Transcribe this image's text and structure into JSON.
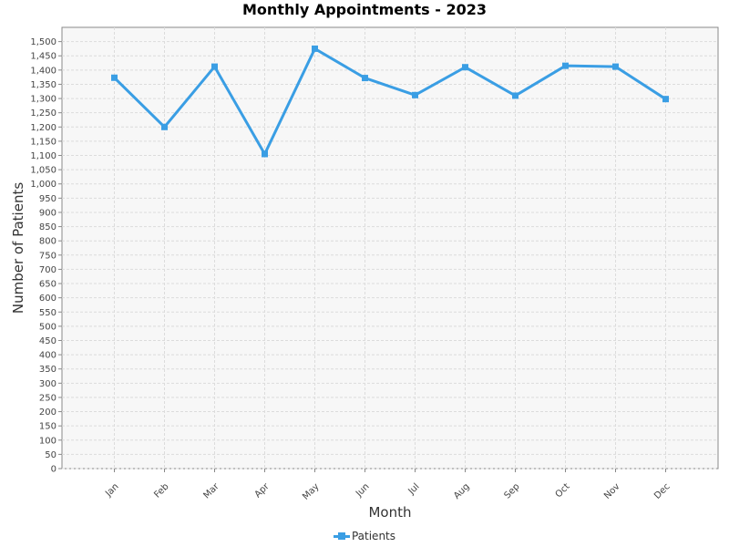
{
  "chart_data": {
    "type": "line",
    "title": "Monthly Appointments - 2023",
    "xlabel": "Month",
    "ylabel": "Number of Patients",
    "categories": [
      "Jan",
      "Feb",
      "Mar",
      "Apr",
      "May",
      "Jun",
      "Jul",
      "Aug",
      "Sep",
      "Oct",
      "Nov",
      "Dec"
    ],
    "series": [
      {
        "name": "Patients",
        "color": "#3a9ee4",
        "values": [
          1373,
          1200,
          1412,
          1105,
          1475,
          1372,
          1312,
          1410,
          1310,
          1415,
          1412,
          1298
        ]
      }
    ],
    "ylim": [
      0,
      1550
    ],
    "ytick_step": 50,
    "yticks": [
      "0",
      "50",
      "100",
      "150",
      "200",
      "250",
      "300",
      "350",
      "400",
      "450",
      "500",
      "550",
      "600",
      "650",
      "700",
      "750",
      "800",
      "850",
      "900",
      "950",
      "1,000",
      "1,050",
      "1,100",
      "1,150",
      "1,200",
      "1,250",
      "1,300",
      "1,350",
      "1,400",
      "1,450",
      "1,500"
    ],
    "grid": true,
    "legend": "bottom-center"
  }
}
